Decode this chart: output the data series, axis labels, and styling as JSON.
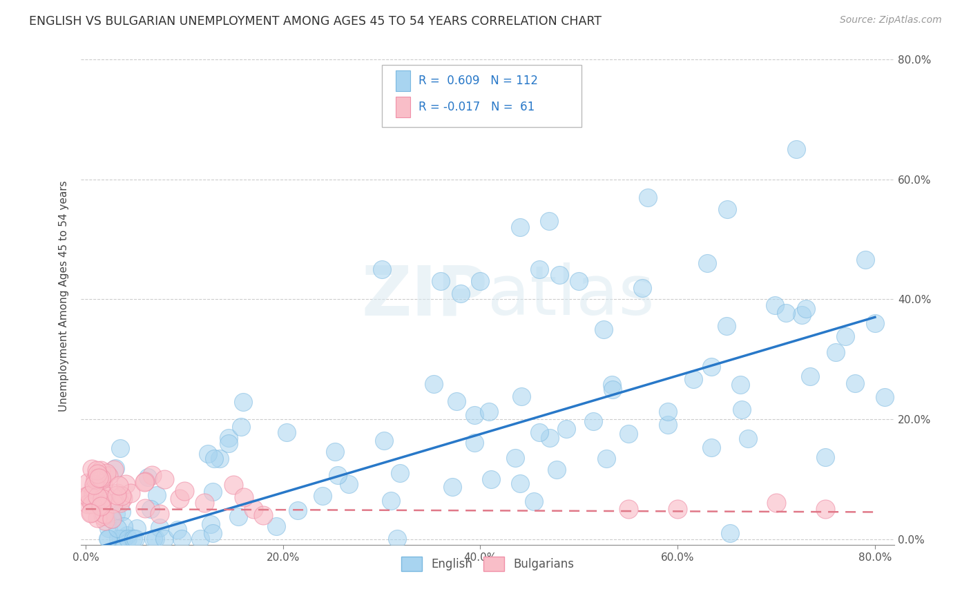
{
  "title": "ENGLISH VS BULGARIAN UNEMPLOYMENT AMONG AGES 45 TO 54 YEARS CORRELATION CHART",
  "source": "Source: ZipAtlas.com",
  "ylabel": "Unemployment Among Ages 45 to 54 years",
  "xlim": [
    -0.005,
    0.82
  ],
  "ylim": [
    -0.01,
    0.82
  ],
  "xticks": [
    0.0,
    0.2,
    0.4,
    0.6,
    0.8
  ],
  "yticks": [
    0.0,
    0.2,
    0.4,
    0.6,
    0.8
  ],
  "xticklabels": [
    "0.0%",
    "20.0%",
    "40.0%",
    "60.0%",
    "80.0%"
  ],
  "yticklabels": [
    "0.0%",
    "20.0%",
    "40.0%",
    "60.0%",
    "80.0%"
  ],
  "english_color": "#A8D4F0",
  "english_edge_color": "#7AB8E0",
  "bulgarian_color": "#F9BEC8",
  "bulgarian_edge_color": "#F090A8",
  "english_line_color": "#2878C8",
  "bulgarian_line_color": "#E07888",
  "watermark": "ZIPatlas",
  "legend_R_english": "0.609",
  "legend_N_english": "112",
  "legend_R_bulgarian": "-0.017",
  "legend_N_bulgarian": "61",
  "eng_line_x0": 0.0,
  "eng_line_y0": -0.02,
  "eng_line_x1": 0.8,
  "eng_line_y1": 0.37,
  "bul_line_x0": 0.0,
  "bul_line_y0": 0.05,
  "bul_line_x1": 0.8,
  "bul_line_y1": 0.045
}
